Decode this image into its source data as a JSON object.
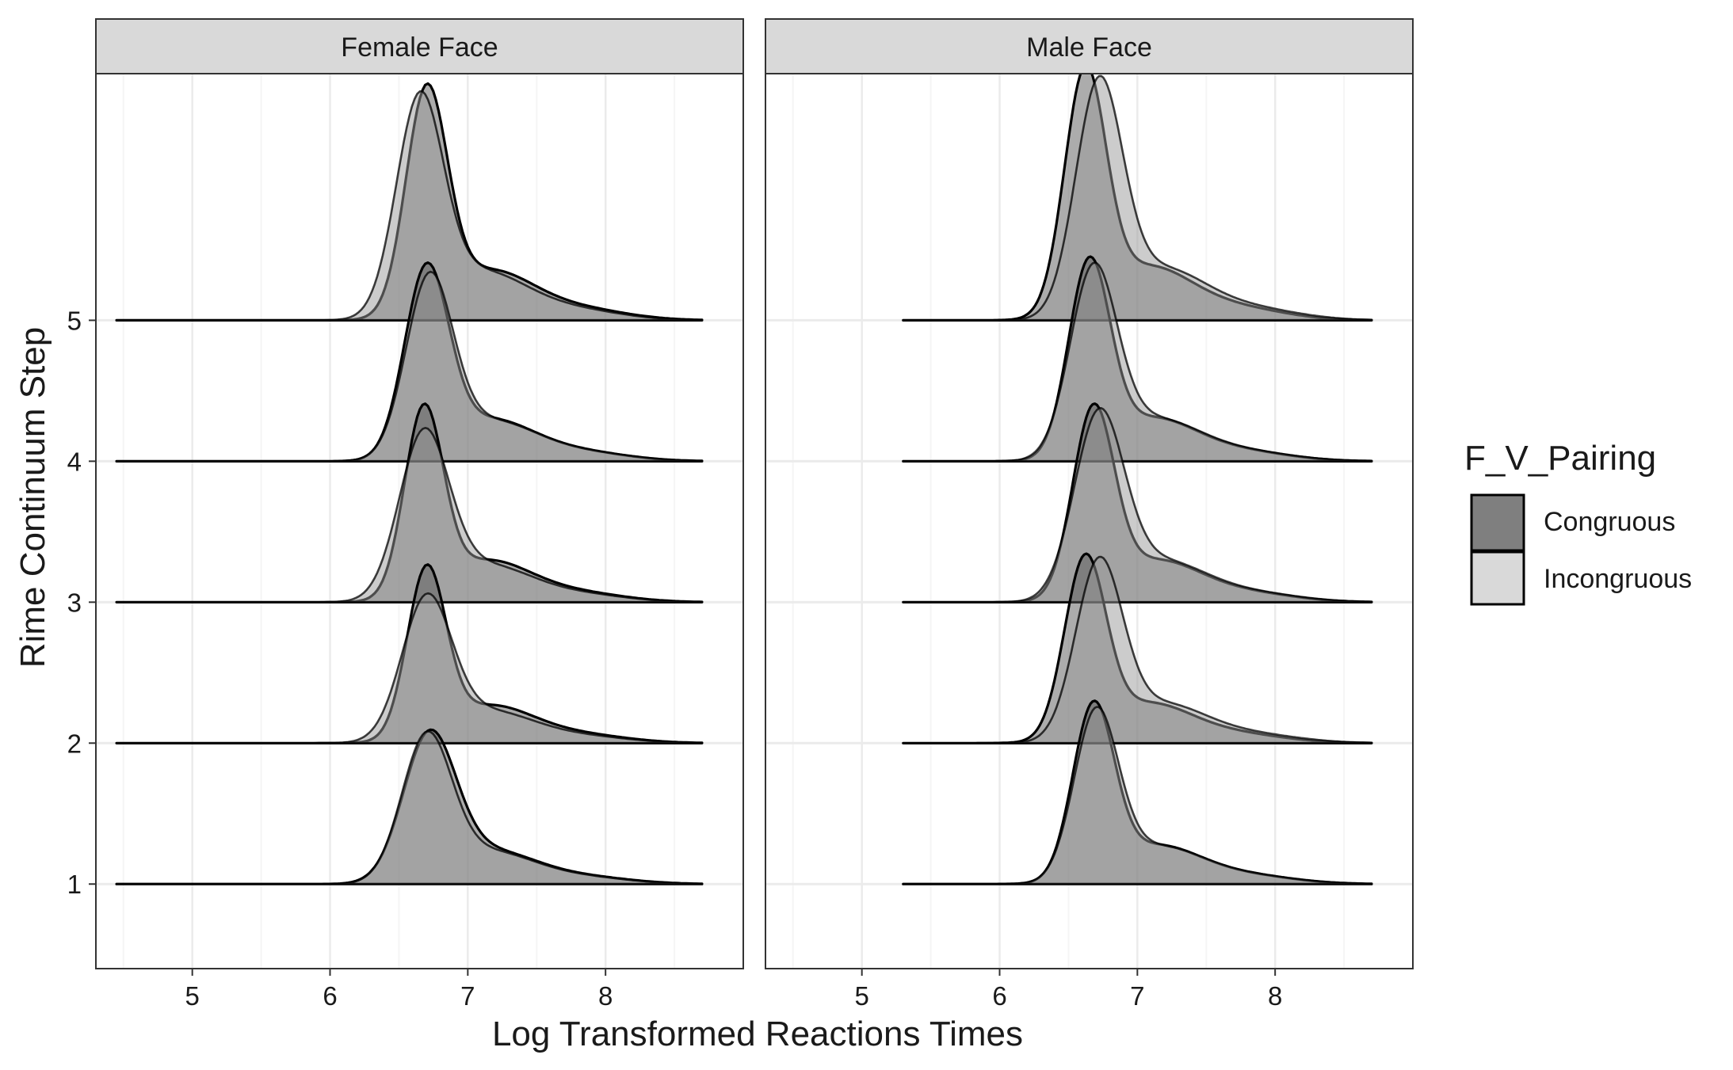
{
  "chart_data": {
    "type": "area",
    "subtype": "ridgeline-density",
    "xlabel": "Log Transformed Reactions Times",
    "ylabel": "Rime Continuum Step",
    "xlim": [
      4.3,
      9.0
    ],
    "ylim": [
      0.4,
      6.75
    ],
    "x_ticks": [
      5,
      6,
      7,
      8
    ],
    "y_ticks": [
      1,
      2,
      3,
      4,
      5
    ],
    "grid": true,
    "legend": {
      "title": "F_V_Pairing",
      "position": "right",
      "entries": [
        {
          "label": "Congruous",
          "color": "#7f7f7f"
        },
        {
          "label": "Incongruous",
          "color": "#d9d9d9"
        }
      ]
    },
    "colors": {
      "Congruous": "#5a5a5a",
      "Incongruous": "#9a9a9a",
      "strip_background": "#d9d9d9",
      "panel_border": "#333333",
      "grid_major": "#ebebeb",
      "grid_minor": "#f5f5f5"
    },
    "panels": [
      {
        "strip": "Female Face",
        "x_range": [
          4.45,
          8.7
        ],
        "ridges": [
          {
            "step": 5,
            "Congruous": {
              "mu": 6.7,
              "height": 1.55,
              "sigma": 0.15
            },
            "Incongruous": {
              "mu": 6.65,
              "height": 1.5,
              "sigma": 0.17
            }
          },
          {
            "step": 4,
            "Congruous": {
              "mu": 6.7,
              "height": 1.3,
              "sigma": 0.16
            },
            "Incongruous": {
              "mu": 6.72,
              "height": 1.24,
              "sigma": 0.17
            }
          },
          {
            "step": 3,
            "Congruous": {
              "mu": 6.68,
              "height": 1.3,
              "sigma": 0.14
            },
            "Incongruous": {
              "mu": 6.68,
              "height": 1.14,
              "sigma": 0.18
            }
          },
          {
            "step": 2,
            "Congruous": {
              "mu": 6.7,
              "height": 1.17,
              "sigma": 0.14
            },
            "Incongruous": {
              "mu": 6.7,
              "height": 0.98,
              "sigma": 0.18
            }
          },
          {
            "step": 1,
            "Congruous": {
              "mu": 6.72,
              "height": 1.01,
              "sigma": 0.19
            },
            "Incongruous": {
              "mu": 6.7,
              "height": 1.0,
              "sigma": 0.18
            }
          }
        ]
      },
      {
        "strip": "Male Face",
        "x_range": [
          5.3,
          8.7
        ],
        "ridges": [
          {
            "step": 5,
            "Congruous": {
              "mu": 6.62,
              "height": 1.67,
              "sigma": 0.15
            },
            "Incongruous": {
              "mu": 6.72,
              "height": 1.6,
              "sigma": 0.17
            }
          },
          {
            "step": 4,
            "Congruous": {
              "mu": 6.65,
              "height": 1.34,
              "sigma": 0.15
            },
            "Incongruous": {
              "mu": 6.68,
              "height": 1.3,
              "sigma": 0.17
            }
          },
          {
            "step": 3,
            "Congruous": {
              "mu": 6.68,
              "height": 1.3,
              "sigma": 0.15
            },
            "Incongruous": {
              "mu": 6.72,
              "height": 1.27,
              "sigma": 0.18
            }
          },
          {
            "step": 2,
            "Congruous": {
              "mu": 6.62,
              "height": 1.24,
              "sigma": 0.15
            },
            "Incongruous": {
              "mu": 6.72,
              "height": 1.22,
              "sigma": 0.17
            }
          },
          {
            "step": 1,
            "Congruous": {
              "mu": 6.68,
              "height": 1.2,
              "sigma": 0.15
            },
            "Incongruous": {
              "mu": 6.7,
              "height": 1.16,
              "sigma": 0.16
            }
          }
        ]
      }
    ]
  }
}
